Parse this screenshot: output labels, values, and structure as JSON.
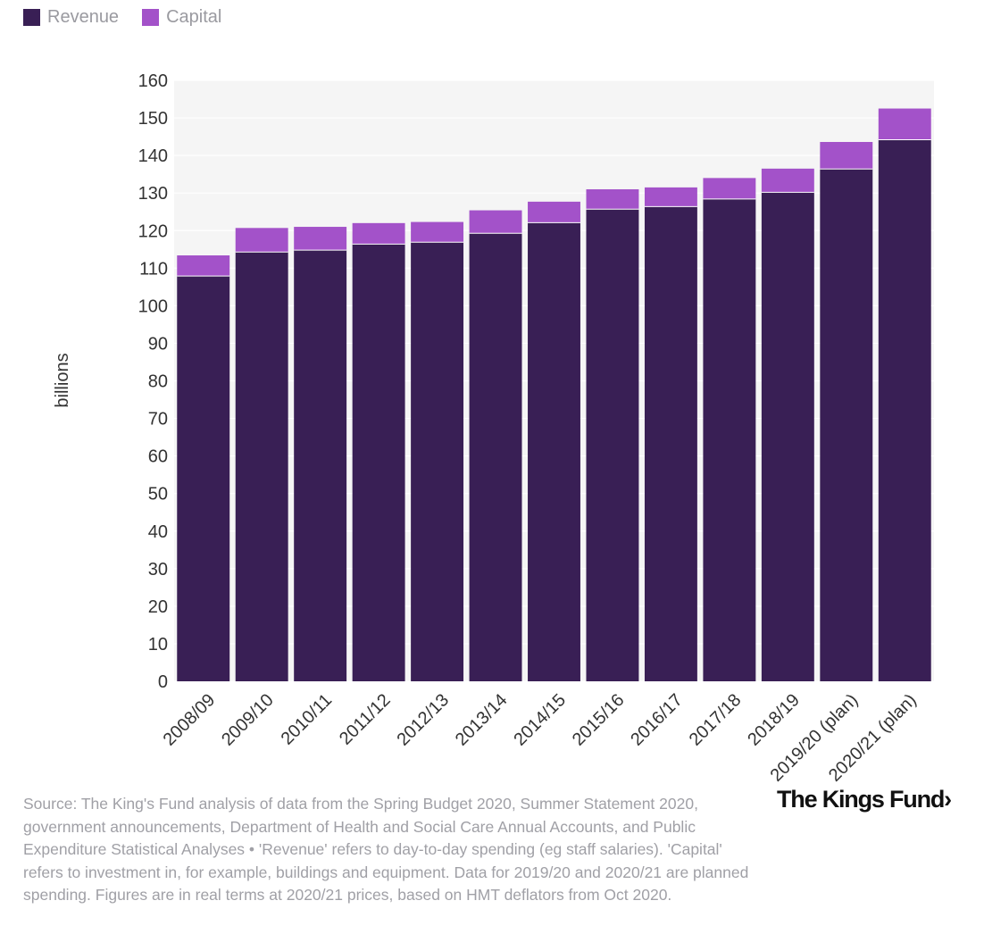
{
  "legend": [
    {
      "label": "Revenue",
      "color": "#391f55"
    },
    {
      "label": "Capital",
      "color": "#a352c9"
    }
  ],
  "chart_data": {
    "type": "bar",
    "stacked": true,
    "ylabel": "billions",
    "ylim": [
      0,
      160
    ],
    "yticks": [
      0,
      10,
      20,
      30,
      40,
      50,
      60,
      70,
      80,
      90,
      100,
      110,
      120,
      130,
      140,
      150,
      160
    ],
    "categories": [
      "2008/09",
      "2009/10",
      "2010/11",
      "2011/12",
      "2012/13",
      "2013/14",
      "2014/15",
      "2015/16",
      "2016/17",
      "2017/18",
      "2018/19",
      "2019/20 (plan)",
      "2020/21 (plan)"
    ],
    "series": [
      {
        "name": "Revenue",
        "color": "#391f55",
        "values": [
          107.9,
          114.3,
          114.8,
          116.4,
          116.9,
          119.3,
          122.1,
          125.7,
          126.4,
          128.4,
          130.2,
          136.4,
          144.2
        ]
      },
      {
        "name": "Capital",
        "color": "#a352c9",
        "values": [
          5.5,
          6.4,
          6.2,
          5.6,
          5.4,
          6.1,
          5.6,
          5.3,
          5.1,
          5.6,
          6.3,
          7.2,
          8.3
        ]
      }
    ],
    "grid": true
  },
  "footer": {
    "source": "Source: The King's Fund analysis of data from the Spring Budget 2020, Summer Statement 2020, government announcements, Department of Health and Social Care Annual Accounts, and Public Expenditure Statistical Analyses • 'Revenue' refers to day-to-day spending (eg staff salaries). 'Capital' refers to investment in, for example, buildings and equipment. Data for 2019/20 and 2020/21 are planned spending. Figures are in real terms at 2020/21 prices, based on HMT deflators from Oct 2020.",
    "logo": "The Kings Fund›"
  }
}
